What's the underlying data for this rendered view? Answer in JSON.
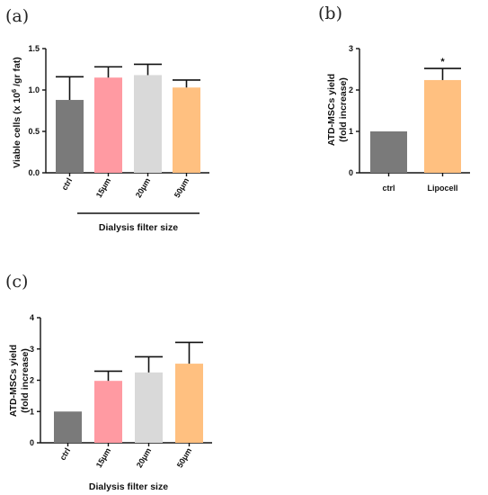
{
  "chart_data": [
    {
      "panel": "(a)",
      "type": "bar",
      "categories": [
        "ctrl",
        "15μm",
        "20μm",
        "50μm"
      ],
      "values": [
        0.88,
        1.15,
        1.18,
        1.03
      ],
      "errors": [
        0.28,
        0.13,
        0.13,
        0.09
      ],
      "colors": [
        "#7a7a7a",
        "#ff9aa2",
        "#d9d9d9",
        "#ffc080"
      ],
      "ylabel_main": "Viable cells (x 10",
      "ylabel_sup": "6",
      "ylabel_end": " /gr fat)",
      "xlabel": "Dialysis filter size",
      "ylim": [
        0,
        1.5
      ],
      "yticks": [
        "0.0",
        "0.5",
        "1.0",
        "1.5"
      ],
      "ytick_values": [
        0,
        0.5,
        1.0,
        1.5
      ],
      "significance": []
    },
    {
      "panel": "(b)",
      "type": "bar",
      "categories": [
        "ctrl",
        "Lipocell"
      ],
      "values": [
        1.0,
        2.24
      ],
      "errors": [
        0,
        0.28
      ],
      "colors": [
        "#7a7a7a",
        "#ffc080"
      ],
      "ylabel_lines": [
        "ATD-MSCs yield",
        "(fold increase)"
      ],
      "ylim": [
        0,
        3
      ],
      "yticks": [
        "0",
        "1",
        "2",
        "3"
      ],
      "ytick_values": [
        0,
        1,
        2,
        3
      ],
      "significance": [
        "",
        "*"
      ]
    },
    {
      "panel": "(c)",
      "type": "bar",
      "categories": [
        "ctrl",
        "15μm",
        "20μm",
        "50μm"
      ],
      "values": [
        1.0,
        1.98,
        2.25,
        2.53
      ],
      "errors": [
        0,
        0.31,
        0.5,
        0.68
      ],
      "colors": [
        "#7a7a7a",
        "#ff9aa2",
        "#d9d9d9",
        "#ffc080"
      ],
      "ylabel_lines": [
        "ATD-MSCs yield",
        "(fold increase)"
      ],
      "xlabel": "Dialysis filter size",
      "ylim": [
        0,
        4
      ],
      "yticks": [
        "0",
        "1",
        "2",
        "3",
        "4"
      ],
      "ytick_values": [
        0,
        1,
        2,
        3,
        4
      ],
      "significance": []
    }
  ]
}
